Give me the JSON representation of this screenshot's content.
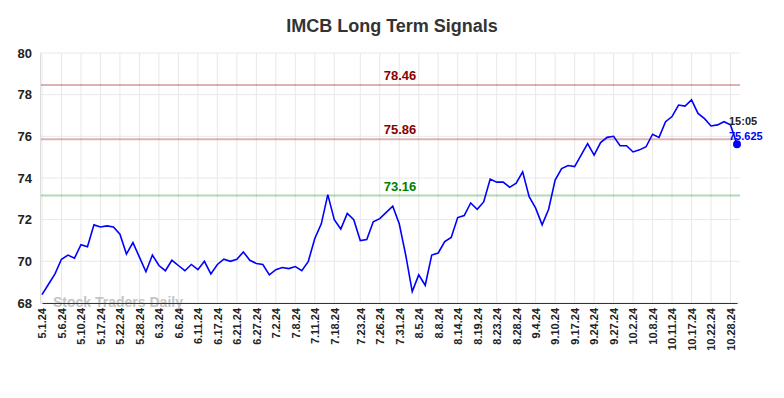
{
  "chart_data": {
    "type": "line",
    "title": "IMCB Long Term Signals",
    "watermark": "Stock Traders Daily",
    "categories": [
      "5.1.24",
      null,
      null,
      "5.6.24",
      null,
      null,
      "5.10.24",
      null,
      null,
      "5.17.24",
      null,
      null,
      "5.22.24",
      null,
      null,
      "5.28.24",
      null,
      null,
      "6.3.24",
      null,
      null,
      "6.6.24",
      null,
      null,
      "6.11.24",
      null,
      null,
      "6.17.24",
      null,
      null,
      "6.21.24",
      null,
      null,
      "6.27.24",
      null,
      null,
      "7.2.24",
      null,
      null,
      "7.8.24",
      null,
      null,
      "7.11.24",
      null,
      null,
      "7.18.24",
      null,
      null,
      null,
      "7.23.24",
      null,
      null,
      "7.26.24",
      null,
      null,
      "7.31.24",
      null,
      null,
      "8.5.24",
      null,
      null,
      "8.8.24",
      null,
      null,
      "8.14.24",
      null,
      null,
      "8.19.24",
      null,
      null,
      "8.23.24",
      null,
      null,
      "8.28.24",
      null,
      null,
      "9.4.24",
      null,
      null,
      "9.10.24",
      null,
      null,
      "9.17.24",
      null,
      null,
      "9.24.24",
      null,
      null,
      "9.27.24",
      null,
      null,
      "10.2.24",
      null,
      null,
      "10.8.24",
      null,
      null,
      "10.11.24",
      null,
      null,
      "10.17.24",
      null,
      null,
      "10.22.24",
      null,
      null,
      "10.28.24",
      null
    ],
    "series": [
      {
        "name": "IMCB",
        "color": "#0000ff",
        "line_style": "solid",
        "values": [
          68.4,
          68.9,
          69.4,
          70.1,
          70.3,
          70.15,
          70.8,
          70.7,
          71.75,
          71.65,
          71.7,
          71.65,
          71.3,
          70.35,
          70.9,
          70.2,
          69.5,
          70.3,
          69.8,
          69.55,
          70.05,
          69.8,
          69.55,
          69.85,
          69.6,
          70.0,
          69.4,
          69.85,
          70.1,
          70.0,
          70.1,
          70.45,
          70.05,
          69.9,
          69.85,
          69.35,
          69.6,
          69.7,
          69.65,
          69.75,
          69.55,
          70.0,
          71.1,
          71.8,
          73.2,
          72.0,
          71.55,
          72.3,
          72.0,
          71.0,
          71.05,
          71.9,
          72.05,
          72.35,
          72.65,
          71.8,
          70.3,
          68.55,
          69.35,
          68.85,
          70.3,
          70.4,
          70.95,
          71.15,
          72.1,
          72.2,
          72.8,
          72.5,
          72.85,
          73.95,
          73.8,
          73.8,
          73.55,
          73.75,
          74.3,
          73.1,
          72.55,
          71.75,
          72.5,
          73.9,
          74.45,
          74.6,
          74.55,
          75.1,
          75.65,
          75.1,
          75.7,
          75.95,
          76.0,
          75.55,
          75.55,
          75.25,
          75.35,
          75.5,
          76.1,
          75.95,
          76.7,
          76.95,
          77.5,
          77.45,
          77.75,
          77.1,
          76.85,
          76.5,
          76.55,
          76.7,
          76.55,
          75.625
        ]
      }
    ],
    "reference_lines": [
      {
        "value": 78.46,
        "label": "78.46",
        "color": "#8b0000"
      },
      {
        "value": 75.86,
        "label": "75.86",
        "color": "#8b0000"
      },
      {
        "value": 73.16,
        "label": "73.16",
        "color": "#008000"
      }
    ],
    "annotations": [
      "15:05"
    ],
    "ylim": [
      68,
      80
    ],
    "yticks": [
      68,
      70,
      72,
      74,
      76,
      78,
      80
    ],
    "grid": true
  }
}
